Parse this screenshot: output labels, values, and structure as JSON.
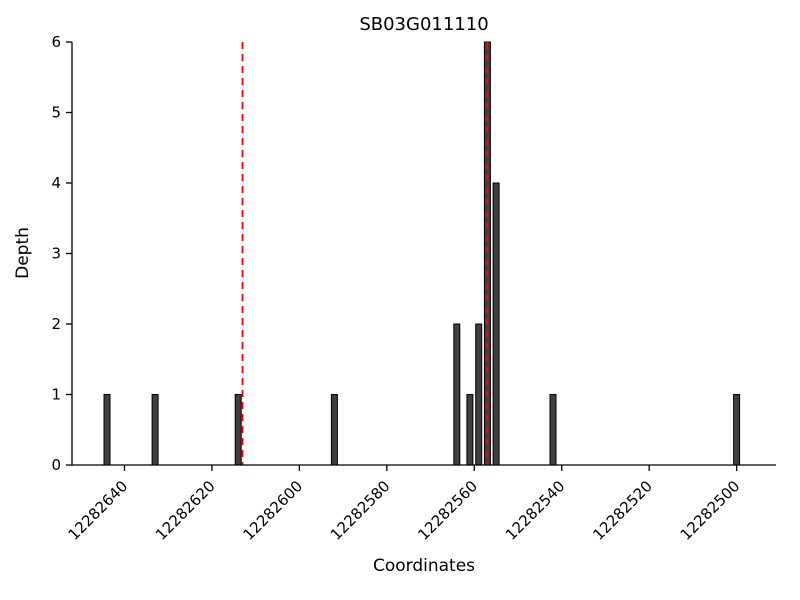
{
  "chart_data": {
    "type": "bar",
    "title": "SB03G011110",
    "xlabel": "Coordinates",
    "ylabel": "Depth",
    "ylim": [
      0,
      6
    ],
    "y_ticks": [
      0,
      1,
      2,
      3,
      4,
      5,
      6
    ],
    "xlim": [
      12282652,
      12282491
    ],
    "x_axis_reversed": true,
    "x_ticks": [
      12282640,
      12282620,
      12282600,
      12282580,
      12282560,
      12282540,
      12282520,
      12282500
    ],
    "bars": [
      {
        "x": 12282644,
        "depth": 1
      },
      {
        "x": 12282633,
        "depth": 1
      },
      {
        "x": 12282614,
        "depth": 1
      },
      {
        "x": 12282592,
        "depth": 1
      },
      {
        "x": 12282564,
        "depth": 2
      },
      {
        "x": 12282561,
        "depth": 1
      },
      {
        "x": 12282559,
        "depth": 2
      },
      {
        "x": 12282557,
        "depth": 6
      },
      {
        "x": 12282555,
        "depth": 4
      },
      {
        "x": 12282542,
        "depth": 1
      },
      {
        "x": 12282500,
        "depth": 1
      }
    ],
    "marker_lines": [
      {
        "x": 12282613,
        "color": "#ff0000",
        "style": "dashed"
      },
      {
        "x": 12282557,
        "color": "#ff0000",
        "style": "dashed"
      }
    ],
    "bar_color": "#3f3f3f",
    "bar_edge_color": "#000000",
    "axis_color": "#000000",
    "background_color": "#ffffff",
    "grid": false,
    "legend": null
  }
}
